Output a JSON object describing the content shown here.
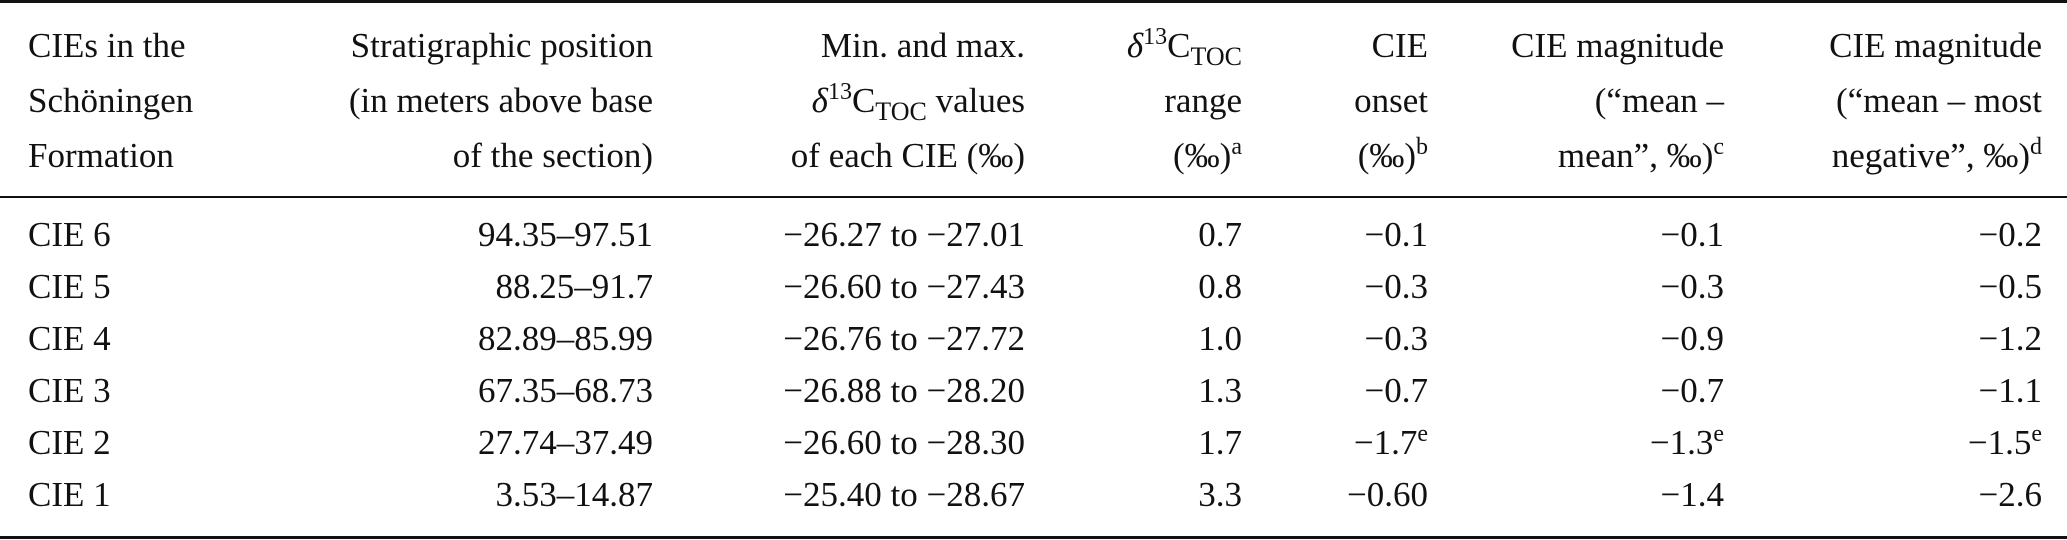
{
  "table": {
    "headers": [
      {
        "lines": [
          "CIEs in the",
          "Schöningen",
          "Formation"
        ]
      },
      {
        "lines": [
          "Stratigraphic position",
          "(in meters above base",
          "of the section)"
        ]
      },
      {
        "lines": [
          "Min. and max.",
          "δ",
          "13",
          "C",
          "TOC",
          " values",
          "of each CIE (‰)"
        ]
      },
      {
        "lines": [
          "δ",
          "13",
          "C",
          "TOC",
          "range",
          "(‰)",
          "a"
        ]
      },
      {
        "lines": [
          "CIE",
          "onset",
          "(‰)",
          "b"
        ]
      },
      {
        "lines": [
          "CIE magnitude",
          "(“mean –",
          "mean”, ‰)",
          "c"
        ]
      },
      {
        "lines": [
          "CIE magnitude",
          "(“mean – most",
          "negative”, ‰)",
          "d"
        ]
      }
    ],
    "rows": [
      {
        "cie": "CIE 6",
        "position": "94.35–97.51",
        "minmax": "−26.27 to −27.01",
        "range": "0.7",
        "onset": "−0.1",
        "onset_sup": "",
        "mag_mean": "−0.1",
        "mag_mean_sup": "",
        "mag_neg": "−0.2",
        "mag_neg_sup": ""
      },
      {
        "cie": "CIE 5",
        "position": "88.25–91.7",
        "minmax": "−26.60 to −27.43",
        "range": "0.8",
        "onset": "−0.3",
        "onset_sup": "",
        "mag_mean": "−0.3",
        "mag_mean_sup": "",
        "mag_neg": "−0.5",
        "mag_neg_sup": ""
      },
      {
        "cie": "CIE 4",
        "position": "82.89–85.99",
        "minmax": "−26.76 to −27.72",
        "range": "1.0",
        "onset": "−0.3",
        "onset_sup": "",
        "mag_mean": "−0.9",
        "mag_mean_sup": "",
        "mag_neg": "−1.2",
        "mag_neg_sup": ""
      },
      {
        "cie": "CIE 3",
        "position": "67.35–68.73",
        "minmax": "−26.88 to −28.20",
        "range": "1.3",
        "onset": "−0.7",
        "onset_sup": "",
        "mag_mean": "−0.7",
        "mag_mean_sup": "",
        "mag_neg": "−1.1",
        "mag_neg_sup": ""
      },
      {
        "cie": "CIE 2",
        "position": "27.74–37.49",
        "minmax": "−26.60 to −28.30",
        "range": "1.7",
        "onset": "−1.7",
        "onset_sup": "e",
        "mag_mean": "−1.3",
        "mag_mean_sup": "e",
        "mag_neg": "−1.5",
        "mag_neg_sup": "e"
      },
      {
        "cie": "CIE 1",
        "position": "3.53–14.87",
        "minmax": "−25.40 to −28.67",
        "range": "3.3",
        "onset": "−0.60",
        "onset_sup": "",
        "mag_mean": "−1.4",
        "mag_mean_sup": "",
        "mag_neg": "−2.6",
        "mag_neg_sup": ""
      }
    ]
  }
}
